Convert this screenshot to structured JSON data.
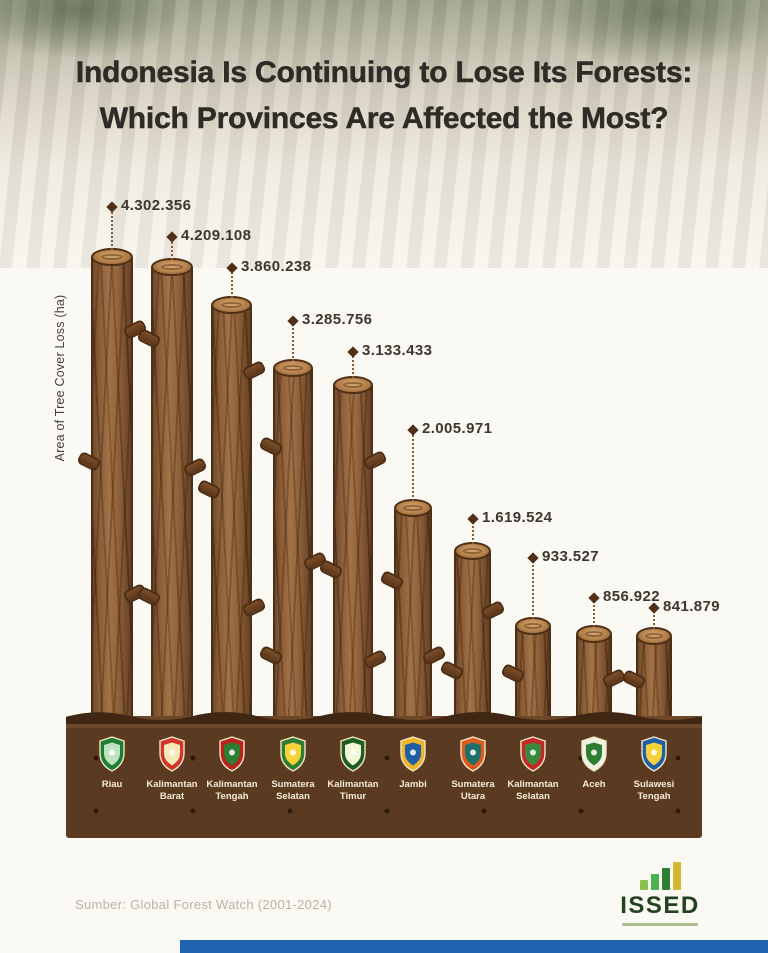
{
  "title": {
    "line1": "Indonesia Is Continuing to Lose Its Forests:",
    "line2": "Which Provinces Are Affected the Most?"
  },
  "chart_data": {
    "type": "bar",
    "title": "Indonesia Is Continuing to Lose Its Forests: Which Provinces Are Affected the Most?",
    "ylabel": "Area of Tree Cover Loss (ha)",
    "xlabel": "",
    "categories": [
      "Riau",
      "Kalimantan Barat",
      "Kalimantan Tengah",
      "Sumatera Selatan",
      "Kalimantan Timur",
      "Jambi",
      "Sumatera Utara",
      "Kalimantan Selatan",
      "Aceh",
      "Sulawesi Tengah"
    ],
    "values": [
      4302356,
      4209108,
      3860238,
      3285756,
      3133433,
      2005971,
      1619524,
      933527,
      856922,
      841879
    ],
    "value_labels": [
      "4.302.356",
      "4.209.108",
      "3.860.238",
      "3.285.756",
      "3.133.433",
      "2.005.971",
      "1.619.524",
      "933.527",
      "856.922",
      "841.879"
    ],
    "ylim": [
      0,
      4302356
    ],
    "legend": false,
    "grid": false,
    "bar_style": "tree-trunk"
  },
  "emblems": [
    {
      "province": "Riau",
      "outer": "#1e7e34",
      "inner": "#bfe3c0"
    },
    {
      "province": "Kalimantan Barat",
      "outer": "#d2342a",
      "inner": "#f6e9b8"
    },
    {
      "province": "Kalimantan Tengah",
      "outer": "#b8231d",
      "inner": "#2e7d32"
    },
    {
      "province": "Sumatera Selatan",
      "outer": "#2e7d32",
      "inner": "#f3d23a"
    },
    {
      "province": "Kalimantan Timur",
      "outer": "#1b5e20",
      "inner": "#f1f8d8"
    },
    {
      "province": "Jambi",
      "outer": "#f0b428",
      "inner": "#1f5fa8"
    },
    {
      "province": "Sumatera Utara",
      "outer": "#e05a20",
      "inner": "#1f6f6b"
    },
    {
      "province": "Kalimantan Selatan",
      "outer": "#c62828",
      "inner": "#3a8a3e"
    },
    {
      "province": "Aceh",
      "outer": "#eef3e4",
      "inner": "#2e7d32"
    },
    {
      "province": "Sulawesi Tengah",
      "outer": "#1f5fa8",
      "inner": "#f3d23a"
    }
  ],
  "footer": {
    "source": "Sumber: Global Forest Watch (2001-2024)"
  },
  "logo": {
    "name": "ISSED",
    "bar_colors": [
      "#8bc34a",
      "#4caf50",
      "#2e7d32",
      "#d4b92e"
    ]
  },
  "colors": {
    "ground": "#5a3a20",
    "ground_lip": "#3f2713",
    "trunk": "#8a5a32",
    "connector": "#8a5a32",
    "value_label": "#3c362e",
    "accent_blue": "#2162b0",
    "title_text": "#2f2b26"
  }
}
